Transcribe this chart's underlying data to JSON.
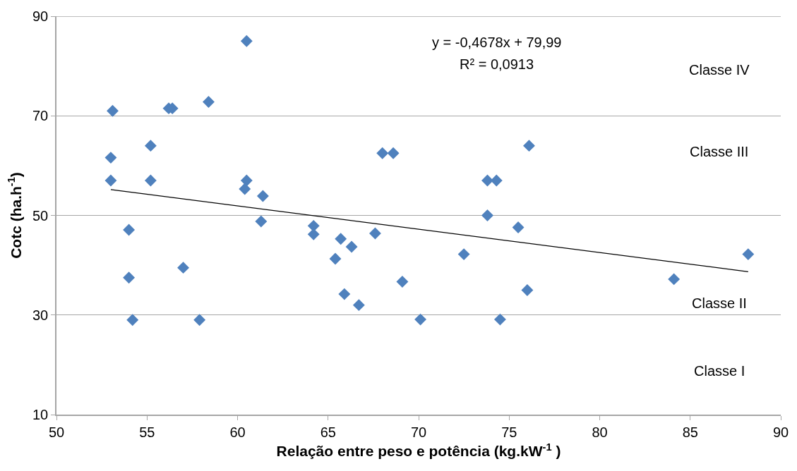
{
  "chart_data": {
    "type": "scatter",
    "xlabel": "Relação entre peso e potência (kg.kW$^{-1}$ )",
    "ylabel": "Cotc (ha.h$^{-1}$)",
    "xlim": [
      50,
      90
    ],
    "xticks": [
      50,
      55,
      60,
      65,
      70,
      75,
      80,
      85,
      90
    ],
    "ylim": [
      10,
      90
    ],
    "yticks": [
      10,
      30,
      50,
      70,
      90
    ],
    "grid": "y",
    "marker": "diamond",
    "series": [
      {
        "color": "#4f81bd",
        "x": [
          53.1,
          53.0,
          53.0,
          54.0,
          54.0,
          54.2,
          55.2,
          55.2,
          56.2,
          56.4,
          57.0,
          57.9,
          58.4,
          60.5,
          60.5,
          60.4,
          61.4,
          61.3,
          64.2,
          64.2,
          65.4,
          65.7,
          65.9,
          66.3,
          66.7,
          67.6,
          68.0,
          68.6,
          69.1,
          70.1,
          72.5,
          73.8,
          73.8,
          74.3,
          74.5,
          75.5,
          76.0,
          76.1,
          84.1,
          88.2
        ],
        "values": [
          71.0,
          61.6,
          57.0,
          47.1,
          37.5,
          29.0,
          64.0,
          57.0,
          71.5,
          71.5,
          39.5,
          29.0,
          72.8,
          85.0,
          57.0,
          55.3,
          53.9,
          48.8,
          47.9,
          46.2,
          41.3,
          45.3,
          34.2,
          43.7,
          32.0,
          46.4,
          62.5,
          62.5,
          36.7,
          29.1,
          42.2,
          57.0,
          50.0,
          57.0,
          29.1,
          47.6,
          35.0,
          64.0,
          37.2,
          42.2
        ]
      },
      {
        "type": "line",
        "color": "#000000",
        "marker": "none",
        "line_style": "solid",
        "x": [
          53.0,
          88.2
        ],
        "values": [
          55.2,
          38.7
        ]
      }
    ],
    "annotations": [
      "y = -0,4678x + 79,99",
      "R² = 0,0913",
      "Classe IV",
      "Classe III",
      "Classe II",
      "Classe I"
    ]
  }
}
